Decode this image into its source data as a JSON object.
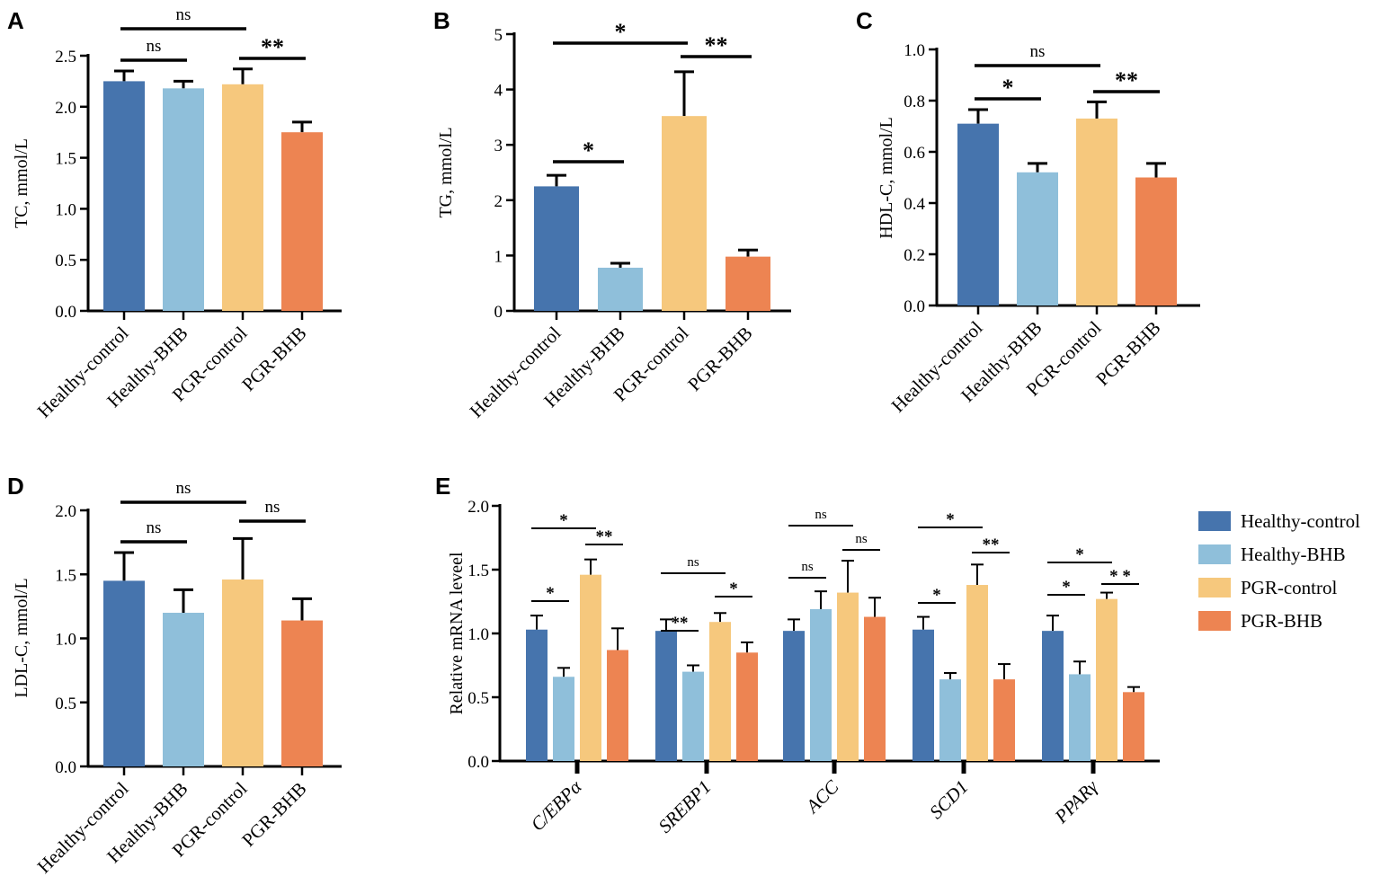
{
  "colors": {
    "Healthy-control": "#4674ad",
    "Healthy-BHB": "#8fbfda",
    "PGR-control": "#f6c87d",
    "PGR-BHB": "#ed8452"
  },
  "chart_data": [
    {
      "panel": "A",
      "type": "bar",
      "ylabel": "TC, mmol/L",
      "ylim": [
        0,
        2.5
      ],
      "yticks": [
        "0.0",
        "0.5",
        "1.0",
        "1.5",
        "2.0",
        "2.5"
      ],
      "categories": [
        "Healthy-control",
        "Healthy-BHB",
        "PGR-control",
        "PGR-BHB"
      ],
      "values": [
        2.25,
        2.18,
        2.22,
        1.75
      ],
      "errors": [
        0.1,
        0.07,
        0.15,
        0.1
      ],
      "significance": [
        {
          "from": 0,
          "to": 2,
          "label": "ns"
        },
        {
          "from": 0,
          "to": 1,
          "label": "ns"
        },
        {
          "from": 2,
          "to": 3,
          "label": "**"
        }
      ]
    },
    {
      "panel": "B",
      "type": "bar",
      "ylabel": "TG, mmol/L",
      "ylim": [
        0,
        5
      ],
      "yticks": [
        "0",
        "1",
        "2",
        "3",
        "4",
        "5"
      ],
      "categories": [
        "Healthy-control",
        "Healthy-BHB",
        "PGR-control",
        "PGR-BHB"
      ],
      "values": [
        2.25,
        0.78,
        3.52,
        0.98
      ],
      "errors": [
        0.2,
        0.08,
        0.8,
        0.12
      ],
      "significance": [
        {
          "from": 0,
          "to": 2,
          "label": "*"
        },
        {
          "from": 2,
          "to": 3,
          "label": "**"
        },
        {
          "from": 0,
          "to": 1,
          "label": "*"
        }
      ]
    },
    {
      "panel": "C",
      "type": "bar",
      "ylabel": "HDL-C, mmol/L",
      "ylim": [
        0,
        1.0
      ],
      "yticks": [
        "0.0",
        "0.2",
        "0.4",
        "0.6",
        "0.8",
        "1.0"
      ],
      "categories": [
        "Healthy-control",
        "Healthy-BHB",
        "PGR-control",
        "PGR-BHB"
      ],
      "values": [
        0.71,
        0.52,
        0.73,
        0.5
      ],
      "errors": [
        0.055,
        0.035,
        0.065,
        0.055
      ],
      "significance": [
        {
          "from": 0,
          "to": 2,
          "label": "ns"
        },
        {
          "from": 0,
          "to": 1,
          "label": "*"
        },
        {
          "from": 2,
          "to": 3,
          "label": "**"
        }
      ]
    },
    {
      "panel": "D",
      "type": "bar",
      "ylabel": "LDL-C, mmol/L",
      "ylim": [
        0,
        2.0
      ],
      "yticks": [
        "0.0",
        "0.5",
        "1.0",
        "1.5",
        "2.0"
      ],
      "categories": [
        "Healthy-control",
        "Healthy-BHB",
        "PGR-control",
        "PGR-BHB"
      ],
      "values": [
        1.45,
        1.2,
        1.46,
        1.14
      ],
      "errors": [
        0.22,
        0.18,
        0.32,
        0.17
      ],
      "significance": [
        {
          "from": 0,
          "to": 2,
          "label": "ns"
        },
        {
          "from": 0,
          "to": 1,
          "label": "ns"
        },
        {
          "from": 2,
          "to": 3,
          "label": "ns"
        }
      ]
    },
    {
      "panel": "E",
      "type": "grouped_bar",
      "ylabel": "Relative mRNA leveel",
      "ylim": [
        0,
        2.0
      ],
      "yticks": [
        "0.0",
        "0.5",
        "1.0",
        "1.5",
        "2.0"
      ],
      "genes": [
        "C/EBPα",
        "SREBP1",
        "ACC",
        "SCD1",
        "PPARγ"
      ],
      "series": [
        {
          "name": "Healthy-control",
          "values": [
            1.03,
            1.02,
            1.02,
            1.03,
            1.02
          ],
          "errors": [
            0.11,
            0.09,
            0.09,
            0.1,
            0.12
          ]
        },
        {
          "name": "Healthy-BHB",
          "values": [
            0.66,
            0.7,
            1.19,
            0.64,
            0.68
          ],
          "errors": [
            0.07,
            0.05,
            0.14,
            0.05,
            0.1
          ]
        },
        {
          "name": "PGR-control",
          "values": [
            1.46,
            1.09,
            1.32,
            1.38,
            1.27
          ],
          "errors": [
            0.12,
            0.07,
            0.25,
            0.16,
            0.05
          ]
        },
        {
          "name": "PGR-BHB",
          "values": [
            0.87,
            0.85,
            1.13,
            0.64,
            0.54
          ],
          "errors": [
            0.17,
            0.08,
            0.15,
            0.12,
            0.04
          ]
        }
      ],
      "significance": [
        {
          "gene": 0,
          "from": 0,
          "to": 2,
          "label": "*"
        },
        {
          "gene": 0,
          "from": 0,
          "to": 1,
          "label": "*"
        },
        {
          "gene": 0,
          "from": 2,
          "to": 3,
          "label": "**"
        },
        {
          "gene": 1,
          "from": 0,
          "to": 2,
          "label": "ns"
        },
        {
          "gene": 1,
          "from": 0,
          "to": 1,
          "label": "**"
        },
        {
          "gene": 1,
          "from": 2,
          "to": 3,
          "label": "*"
        },
        {
          "gene": 2,
          "from": 0,
          "to": 2,
          "label": "ns"
        },
        {
          "gene": 2,
          "from": 0,
          "to": 1,
          "label": "ns"
        },
        {
          "gene": 2,
          "from": 2,
          "to": 3,
          "label": "ns"
        },
        {
          "gene": 3,
          "from": 0,
          "to": 2,
          "label": "*"
        },
        {
          "gene": 3,
          "from": 0,
          "to": 1,
          "label": "*"
        },
        {
          "gene": 3,
          "from": 2,
          "to": 3,
          "label": "**"
        },
        {
          "gene": 4,
          "from": 0,
          "to": 2,
          "label": "*"
        },
        {
          "gene": 4,
          "from": 0,
          "to": 1,
          "label": "*"
        },
        {
          "gene": 4,
          "from": 2,
          "to": 3,
          "label": "* *"
        }
      ],
      "legend": [
        "Healthy-control",
        "Healthy-BHB",
        "PGR-control",
        "PGR-BHB"
      ],
      "legend_position": "right"
    }
  ]
}
